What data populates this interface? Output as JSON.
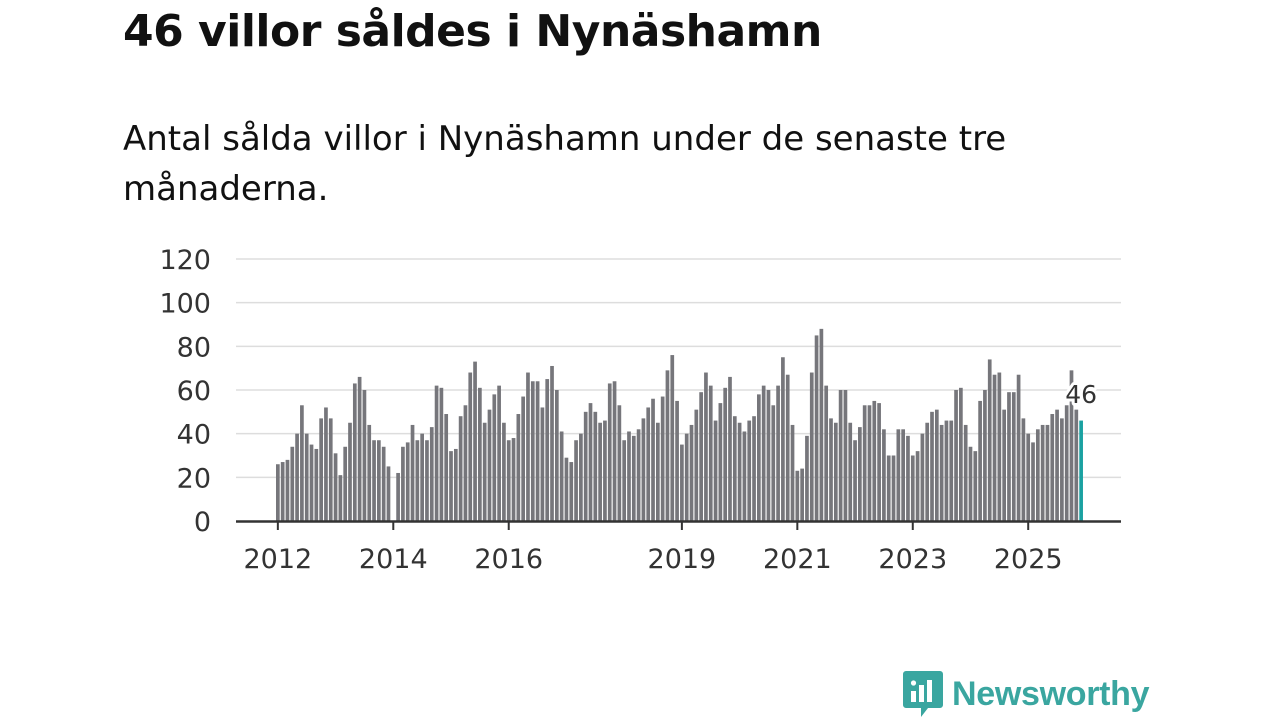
{
  "header": {
    "title": "46 villor såldes i Nynäshamn",
    "subtitle": "Antal sålda villor i Nynäshamn under de senaste tre månaderna."
  },
  "brand": {
    "name": "Newsworthy",
    "color": "#3aa6a0"
  },
  "colors": {
    "bar": "#76767b",
    "highlight": "#1aa1a1",
    "grid": "#dddddd",
    "axis": "#333333"
  },
  "chart_data": {
    "type": "bar",
    "title": "46 villor såldes i Nynäshamn",
    "xlabel": "",
    "ylabel": "",
    "ylim": [
      0,
      120
    ],
    "yticks": [
      "0",
      "20",
      "40",
      "60",
      "80",
      "100",
      "120"
    ],
    "xticks": [
      {
        "label": "2012",
        "index": 0
      },
      {
        "label": "2014",
        "index": 24
      },
      {
        "label": "2016",
        "index": 48
      },
      {
        "label": "2019",
        "index": 84
      },
      {
        "label": "2021",
        "index": 108
      },
      {
        "label": "2023",
        "index": 132
      },
      {
        "label": "2025",
        "index": 156
      }
    ],
    "series": [
      {
        "name": "Sålda villor (rullande tre månader)",
        "start": "2012-01",
        "values": [
          26,
          27,
          28,
          34,
          40,
          53,
          40,
          35,
          33,
          47,
          52,
          47,
          31,
          21,
          34,
          45,
          63,
          66,
          60,
          44,
          37,
          37,
          34,
          25,
          null,
          22,
          34,
          36,
          44,
          37,
          40,
          37,
          43,
          62,
          61,
          49,
          32,
          33,
          48,
          53,
          68,
          73,
          61,
          45,
          51,
          58,
          62,
          45,
          37,
          38,
          49,
          57,
          68,
          64,
          64,
          52,
          65,
          71,
          60,
          41,
          29,
          27,
          37,
          40,
          50,
          54,
          50,
          45,
          46,
          63,
          64,
          53,
          37,
          41,
          39,
          42,
          47,
          52,
          56,
          45,
          57,
          69,
          76,
          55,
          35,
          40,
          44,
          51,
          59,
          68,
          62,
          46,
          54,
          61,
          66,
          48,
          45,
          41,
          46,
          48,
          58,
          62,
          60,
          53,
          62,
          75,
          67,
          44,
          23,
          24,
          39,
          68,
          85,
          88,
          62,
          47,
          45,
          60,
          60,
          45,
          37,
          43,
          53,
          53,
          55,
          54,
          42,
          30,
          30,
          42,
          42,
          39,
          30,
          32,
          40,
          45,
          50,
          51,
          44,
          46,
          46,
          60,
          61,
          44,
          34,
          32,
          55,
          60,
          74,
          67,
          68,
          51,
          59,
          59,
          67,
          47,
          40,
          36,
          42,
          44,
          44,
          49,
          51,
          47,
          53,
          69,
          51,
          46
        ]
      }
    ],
    "highlight": {
      "index": 167,
      "value": 46,
      "label": "46"
    }
  }
}
